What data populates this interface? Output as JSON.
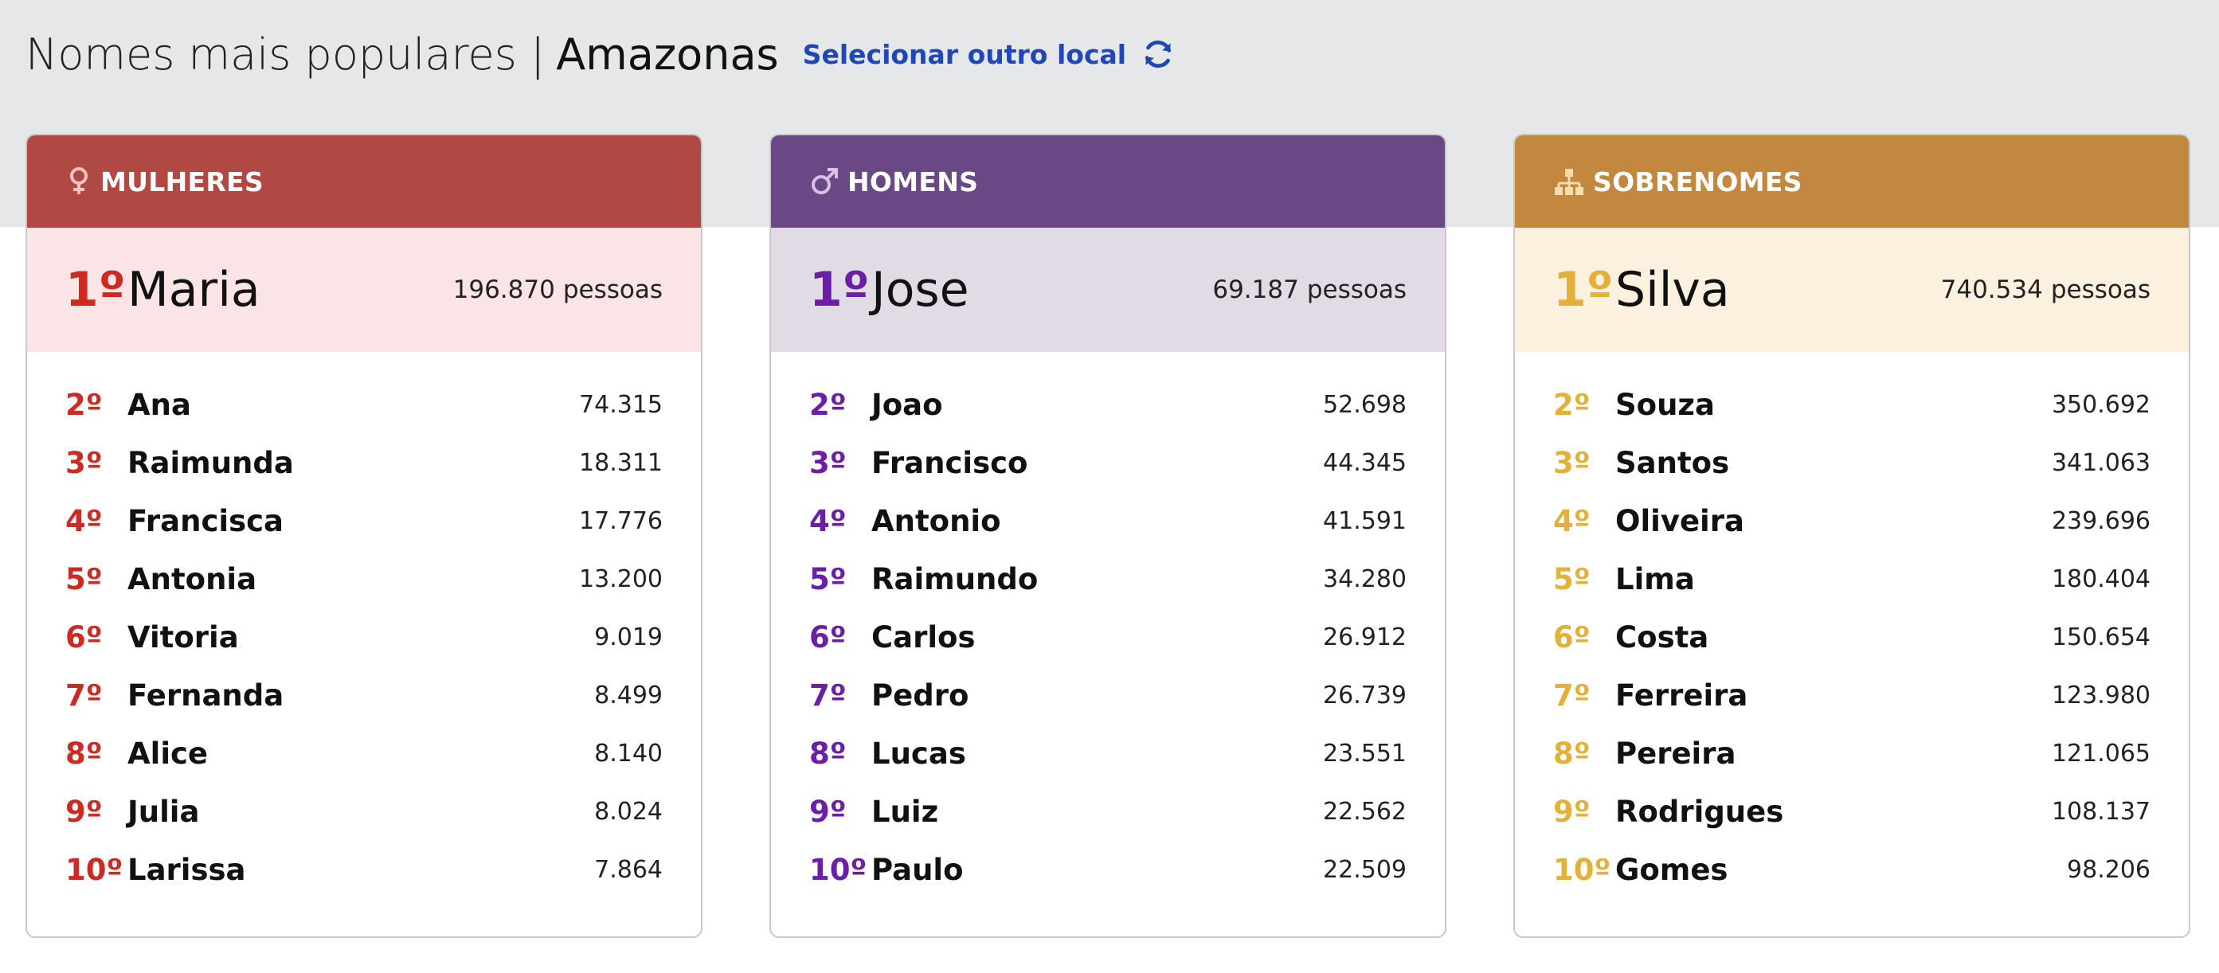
{
  "header": {
    "title": "Nomes mais populares |",
    "place": "Amazonas",
    "change_location_label": "Selecionar outro local",
    "refresh_icon": "refresh-icon"
  },
  "colors": {
    "women_header": "#b04844",
    "men_header": "#6a4885",
    "surnames_header": "#c28840",
    "women_rank": "#cc2a22",
    "men_rank": "#6b1fa6",
    "surnames_rank": "#e2b13a",
    "link": "#1f47b5"
  },
  "cards": [
    {
      "title": "MULHERES",
      "icon": "female-icon",
      "top": {
        "rank": "1º",
        "name": "Maria",
        "count": "196.870",
        "unit": "pessoas"
      },
      "items": [
        {
          "rank": "2º",
          "name": "Ana",
          "count": "74.315"
        },
        {
          "rank": "3º",
          "name": "Raimunda",
          "count": "18.311"
        },
        {
          "rank": "4º",
          "name": "Francisca",
          "count": "17.776"
        },
        {
          "rank": "5º",
          "name": "Antonia",
          "count": "13.200"
        },
        {
          "rank": "6º",
          "name": "Vitoria",
          "count": "9.019"
        },
        {
          "rank": "7º",
          "name": "Fernanda",
          "count": "8.499"
        },
        {
          "rank": "8º",
          "name": "Alice",
          "count": "8.140"
        },
        {
          "rank": "9º",
          "name": "Julia",
          "count": "8.024"
        },
        {
          "rank": "10º",
          "name": "Larissa",
          "count": "7.864"
        }
      ]
    },
    {
      "title": "HOMENS",
      "icon": "male-icon",
      "top": {
        "rank": "1º",
        "name": "Jose",
        "count": "69.187",
        "unit": "pessoas"
      },
      "items": [
        {
          "rank": "2º",
          "name": "Joao",
          "count": "52.698"
        },
        {
          "rank": "3º",
          "name": "Francisco",
          "count": "44.345"
        },
        {
          "rank": "4º",
          "name": "Antonio",
          "count": "41.591"
        },
        {
          "rank": "5º",
          "name": "Raimundo",
          "count": "34.280"
        },
        {
          "rank": "6º",
          "name": "Carlos",
          "count": "26.912"
        },
        {
          "rank": "7º",
          "name": "Pedro",
          "count": "26.739"
        },
        {
          "rank": "8º",
          "name": "Lucas",
          "count": "23.551"
        },
        {
          "rank": "9º",
          "name": "Luiz",
          "count": "22.562"
        },
        {
          "rank": "10º",
          "name": "Paulo",
          "count": "22.509"
        }
      ]
    },
    {
      "title": "SOBRENOMES",
      "icon": "family-tree-icon",
      "top": {
        "rank": "1º",
        "name": "Silva",
        "count": "740.534",
        "unit": "pessoas"
      },
      "items": [
        {
          "rank": "2º",
          "name": "Souza",
          "count": "350.692"
        },
        {
          "rank": "3º",
          "name": "Santos",
          "count": "341.063"
        },
        {
          "rank": "4º",
          "name": "Oliveira",
          "count": "239.696"
        },
        {
          "rank": "5º",
          "name": "Lima",
          "count": "180.404"
        },
        {
          "rank": "6º",
          "name": "Costa",
          "count": "150.654"
        },
        {
          "rank": "7º",
          "name": "Ferreira",
          "count": "123.980"
        },
        {
          "rank": "8º",
          "name": "Pereira",
          "count": "121.065"
        },
        {
          "rank": "9º",
          "name": "Rodrigues",
          "count": "108.137"
        },
        {
          "rank": "10º",
          "name": "Gomes",
          "count": "98.206"
        }
      ]
    }
  ]
}
